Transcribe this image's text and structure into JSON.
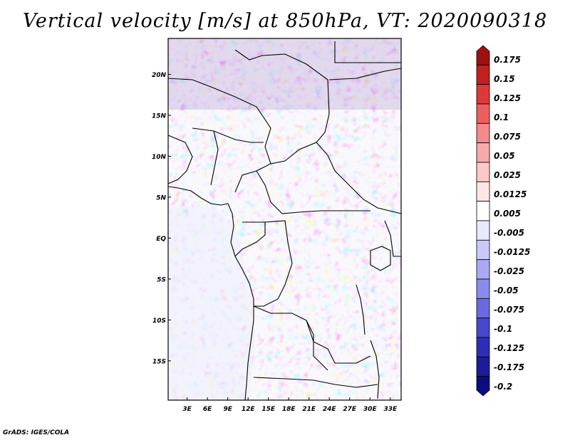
{
  "title": "Vertical velocity [m/s] at 850hPa, VT: 2020090318",
  "footer": "GrADS: IGES/COLA",
  "map": {
    "lat_labels": [
      "20N",
      "15N",
      "10N",
      "5N",
      "EQ",
      "5S",
      "10S",
      "15S"
    ],
    "lat_values": [
      20,
      15,
      10,
      5,
      0,
      -5,
      -10,
      -15
    ],
    "lon_labels": [
      "3E",
      "6E",
      "9E",
      "12E",
      "15E",
      "18E",
      "21E",
      "24E",
      "27E",
      "30E",
      "33E"
    ],
    "lon_values": [
      3,
      6,
      9,
      12,
      15,
      18,
      21,
      24,
      27,
      30,
      33
    ],
    "lat_range": [
      -19.8,
      24.4
    ],
    "lon_range": [
      0.2,
      34.6
    ],
    "variable": "Vertical velocity",
    "units": "m/s",
    "level": "850hPa",
    "valid_time": "2020090318"
  },
  "colorbar": {
    "labels": [
      "0.175",
      "0.15",
      "0.125",
      "0.1",
      "0.075",
      "0.05",
      "0.025",
      "0.0125",
      "0.005",
      "-0.005",
      "-0.0125",
      "-0.025",
      "-0.05",
      "-0.075",
      "-0.1",
      "-0.125",
      "-0.175",
      "-0.2"
    ],
    "colors": [
      "#a01010",
      "#c02020",
      "#dc3a3a",
      "#ee5e5e",
      "#f48a8a",
      "#f8aaaa",
      "#fcc8c8",
      "#fee6e6",
      "#ffffff",
      "#e8e8fe",
      "#cacafa",
      "#aaaaf4",
      "#8a8aee",
      "#6a6ae0",
      "#4848cc",
      "#2e2eb4",
      "#1c1c98",
      "#0c0c80"
    ]
  }
}
